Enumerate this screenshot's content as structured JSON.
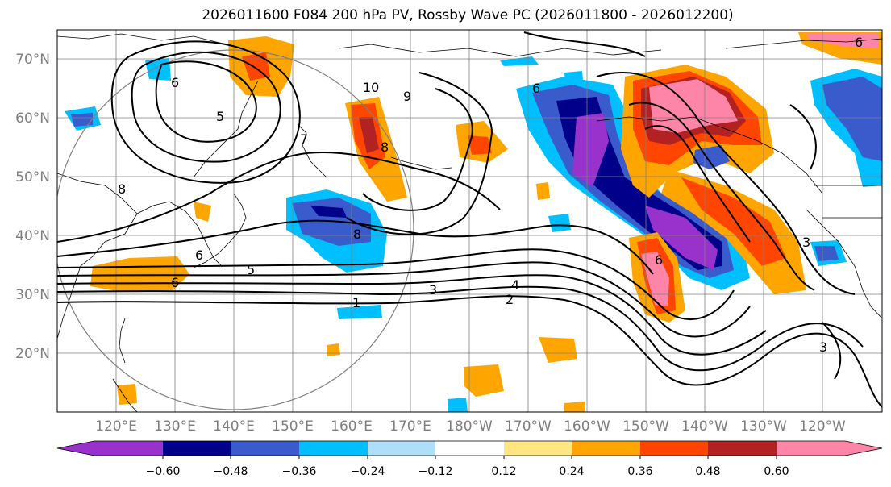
{
  "title": "2026011600 F084 200 hPa PV, Rossby Wave PC (2026011800 - 2026012200)",
  "lat_labels": [
    "70°N",
    "60°N",
    "50°N",
    "40°N",
    "30°N",
    "20°N"
  ],
  "lon_labels": [
    "120°E",
    "130°E",
    "140°E",
    "150°E",
    "160°E",
    "170°E",
    "180°W",
    "170°W",
    "160°W",
    "150°W",
    "140°W",
    "130°W",
    "120°W"
  ],
  "colorbar": {
    "ticks": [
      "−0.60",
      "−0.48",
      "−0.36",
      "−0.24",
      "−0.12",
      "0.12",
      "0.24",
      "0.36",
      "0.48",
      "0.60"
    ],
    "colors": [
      "#9932cc",
      "#00008b",
      "#3a5bcc",
      "#00bfff",
      "#aedffa",
      "#ffffff",
      "#ffe680",
      "#ffa500",
      "#ff4500",
      "#b22222",
      "#ff85a8"
    ]
  },
  "pv_contour_labels": [
    "6",
    "5",
    "10",
    "9",
    "8",
    "6",
    "8",
    "6",
    "5",
    "1",
    "3",
    "4",
    "2",
    "6",
    "7",
    "8",
    "6",
    "3",
    "6",
    "3"
  ]
}
